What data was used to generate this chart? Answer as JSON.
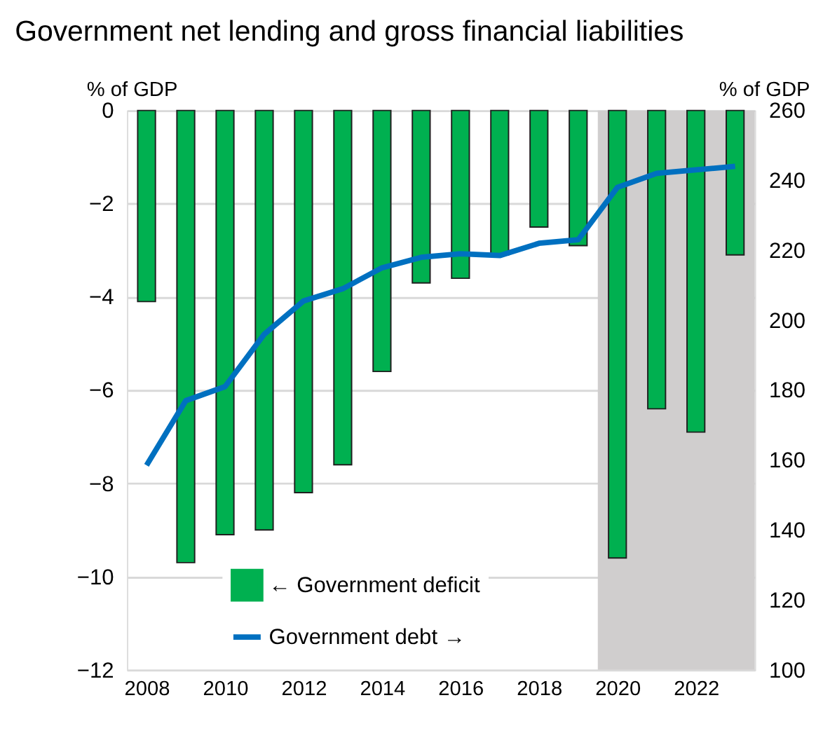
{
  "chart_data": {
    "type": "bar",
    "title": "Government net lending and gross financial liabilities",
    "ylabel": "% of GDP",
    "y2label": "% of GDP",
    "x": [
      2008,
      2009,
      2010,
      2011,
      2012,
      2013,
      2014,
      2015,
      2016,
      2017,
      2018,
      2019,
      2020,
      2021,
      2022,
      2023
    ],
    "series": [
      {
        "name": "← Government deficit",
        "color": "#00b050",
        "values": [
          -4.1,
          -9.7,
          -9.1,
          -9.0,
          -8.2,
          -7.6,
          -5.6,
          -3.7,
          -3.6,
          -3.1,
          -2.5,
          -2.9,
          -9.6,
          -6.4,
          -6.9,
          -3.1
        ]
      },
      {
        "name": "Government debt →",
        "type": "line",
        "axis": "y2",
        "color": "#0070c0",
        "values": [
          158.5,
          177,
          181,
          196,
          205.5,
          209,
          215,
          218,
          219,
          218.5,
          222,
          223,
          238,
          242,
          243,
          244
        ]
      }
    ],
    "xlim": [
      2007.5,
      2023.5
    ],
    "xticks": [
      2008,
      2010,
      2012,
      2014,
      2016,
      2018,
      2020,
      2022
    ],
    "ylim": [
      -12,
      0
    ],
    "yticks": [
      -12,
      -10,
      -8,
      -6,
      -4,
      -2,
      0
    ],
    "y2lim": [
      100,
      260
    ],
    "y2ticks": [
      100,
      120,
      140,
      160,
      180,
      200,
      220,
      240,
      260
    ],
    "bands": [
      {
        "axis": "x",
        "from": 2019.5,
        "to": 2023.5,
        "color": "#d0cece"
      }
    ],
    "grid": "y",
    "legend": "bottom left"
  }
}
